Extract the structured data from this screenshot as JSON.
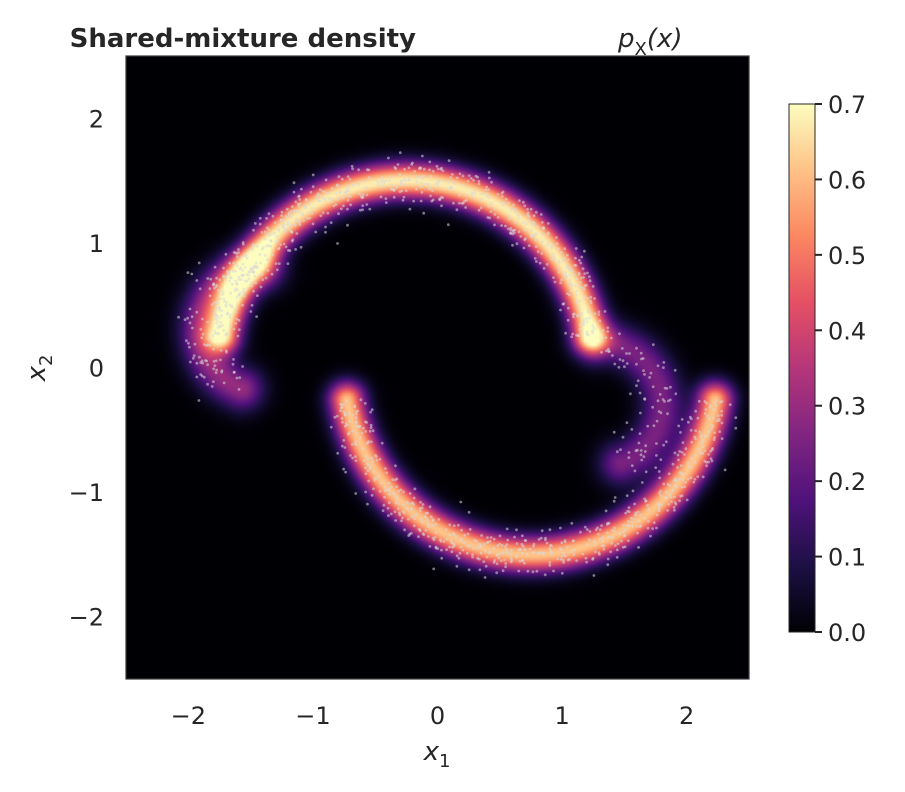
{
  "chart_data": {
    "type": "heatmap",
    "title": "Shared-mixture density",
    "title_math": {
      "main": "p",
      "sub": "X",
      "arg": "(x)"
    },
    "xlabel": {
      "main": "x",
      "sub": "1"
    },
    "ylabel": {
      "main": "x",
      "sub": "2"
    },
    "xlim": [
      -2.5,
      2.5
    ],
    "ylim": [
      -2.5,
      2.5
    ],
    "xticks": [
      -2,
      -1,
      0,
      1,
      2
    ],
    "yticks": [
      -2,
      -1,
      0,
      1,
      2
    ],
    "xtick_labels": [
      "−2",
      "−1",
      "0",
      "1",
      "2"
    ],
    "ytick_labels": [
      "−2",
      "−1",
      "0",
      "1",
      "2"
    ],
    "colormap": "magma",
    "colorbar": {
      "range": [
        0.0,
        0.7
      ],
      "ticks": [
        0.0,
        0.1,
        0.2,
        0.3,
        0.4,
        0.5,
        0.6,
        0.7
      ],
      "tick_labels": [
        "0.0",
        "0.1",
        "0.2",
        "0.3",
        "0.4",
        "0.5",
        "0.6",
        "0.7"
      ]
    },
    "density_components": [
      {
        "name": "upper-moon",
        "center": [
          -0.25,
          0.0
        ],
        "radius": 1.5,
        "angle_from_deg": 10,
        "angle_to_deg": 170,
        "width": 0.1,
        "peak": 0.68
      },
      {
        "name": "lower-moon",
        "center": [
          0.75,
          0.0
        ],
        "radius": 1.5,
        "angle_from_deg": 190,
        "angle_to_deg": 350,
        "width": 0.1,
        "peak": 0.62
      },
      {
        "name": "left-arm",
        "center": [
          -1.4,
          0.3
        ],
        "radius": 0.5,
        "angle_from_deg": 90,
        "angle_to_deg": 250,
        "width": 0.12,
        "peak": 0.3
      },
      {
        "name": "right-arm",
        "center": [
          1.3,
          -0.3
        ],
        "radius": 0.5,
        "angle_from_deg": -70,
        "angle_to_deg": 90,
        "width": 0.12,
        "peak": 0.25
      }
    ],
    "scatter": {
      "description_count": 1500,
      "color": "#d8d8d8",
      "opacity": 0.55
    }
  },
  "colors": {
    "background": "#ffffff",
    "frame": "#3a3a3a",
    "text": "#262626",
    "magma": [
      "#000004",
      "#1c1044",
      "#4f127b",
      "#812581",
      "#b5367a",
      "#e55064",
      "#fb8761",
      "#fec287",
      "#fcfdbf"
    ]
  }
}
